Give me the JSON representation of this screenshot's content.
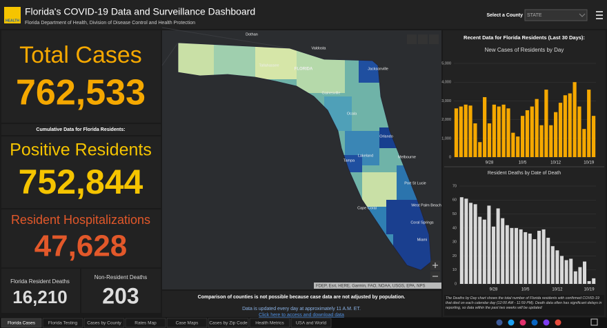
{
  "header": {
    "logo": "HEALTH",
    "title": "Florida's COVID-19 Data and Surveillance Dashboard",
    "subtitle": "Florida Department of Health, Division of Disease Control and Health Protection",
    "county_label": "Select a County",
    "county_value": "STATE"
  },
  "stats": {
    "total_label": "Total Cases",
    "total_value": "762,533",
    "cumulative_label": "Cumulative Data for Florida Residents:",
    "positive_label": "Positive Residents",
    "positive_value": "752,844",
    "hosp_label": "Resident Hospitalizations",
    "hosp_value": "47,628",
    "deaths_label": "Florida Resident Deaths",
    "deaths_value": "16,210",
    "nonres_label": "Non-Resident Deaths",
    "nonres_value": "203"
  },
  "map": {
    "labels": [
      "Dothan",
      "Valdosta",
      "Tallahassee",
      "FLORIDA",
      "Jacksonville",
      "Gainesville",
      "Ocala",
      "Orlando",
      "Tampa",
      "Lakeland",
      "Melbourne",
      "Port St Lucie",
      "West Palm Beach",
      "Cape Coral",
      "Coral Springs",
      "Miami"
    ],
    "attribution": "FDEP, Esri, HERE, Garmin, FAO, NOAA, USGS, EPA, NPS",
    "note": "Comparison of counties is not possible because case data are not adjusted by population.",
    "update": "Data is updated every day at approximately 11 A.M. ET.",
    "link": "Click here to access and download data"
  },
  "recent_heading": "Recent Data for Florida Residents (Last 30 Days):",
  "chart_data": [
    {
      "type": "bar",
      "title": "New Cases of Residents by Day",
      "color": "#f5a800",
      "categories": [
        null,
        null,
        null,
        null,
        null,
        null,
        null,
        "9/28",
        null,
        null,
        null,
        null,
        null,
        null,
        "10/5",
        null,
        null,
        null,
        null,
        null,
        null,
        "10/12",
        null,
        null,
        null,
        null,
        null,
        null,
        "10/19",
        null
      ],
      "values": [
        2600,
        2700,
        2800,
        2750,
        1800,
        800,
        3200,
        1800,
        2800,
        2700,
        2800,
        2600,
        1300,
        1100,
        2200,
        2500,
        2700,
        3100,
        1700,
        3600,
        1700,
        2400,
        2900,
        3300,
        3400,
        4000,
        2700,
        1500,
        3600,
        2200
      ],
      "ylim": [
        0,
        5000
      ],
      "yticks": [
        0,
        {
          "value": 1000,
          "label": "1,000"
        },
        {
          "value": 2000,
          "label": "2,000"
        },
        {
          "value": 3000,
          "label": "3,000"
        },
        {
          "value": 4000,
          "label": "4,000"
        },
        {
          "value": 5000,
          "label": "5,000"
        }
      ]
    },
    {
      "type": "bar",
      "title": "Resident Deaths by Date of Death",
      "color": "#d9d9d9",
      "categories": [
        null,
        null,
        null,
        null,
        null,
        null,
        null,
        "9/28",
        null,
        null,
        null,
        null,
        null,
        null,
        "10/5",
        null,
        null,
        null,
        null,
        null,
        null,
        "10/12",
        null,
        null,
        null,
        null,
        null,
        null,
        "10/19",
        null
      ],
      "values": [
        62,
        61,
        58,
        57,
        48,
        46,
        56,
        41,
        54,
        47,
        42,
        40,
        40,
        39,
        37,
        36,
        32,
        38,
        39,
        33,
        27,
        24,
        20,
        17,
        18,
        9,
        12,
        16,
        2,
        4
      ],
      "ylim": [
        0,
        70
      ],
      "yticks": [
        0,
        10,
        20,
        30,
        40,
        50,
        60,
        70
      ]
    }
  ],
  "deaths_note": "The Deaths by Day chart shows the total number of Florida residents with confirmed COVID-19 that died on each calendar day (12:00 AM - 11:59 PM). Death data often has significant delays in reporting, so data within the past two weeks will be updated",
  "tabs": [
    "Florida Cases",
    "Florida Testing",
    "Cases by County",
    "Rates Map",
    "Case Maps",
    "Cases by Zip Code",
    "Health Metrics",
    "USA and World"
  ]
}
